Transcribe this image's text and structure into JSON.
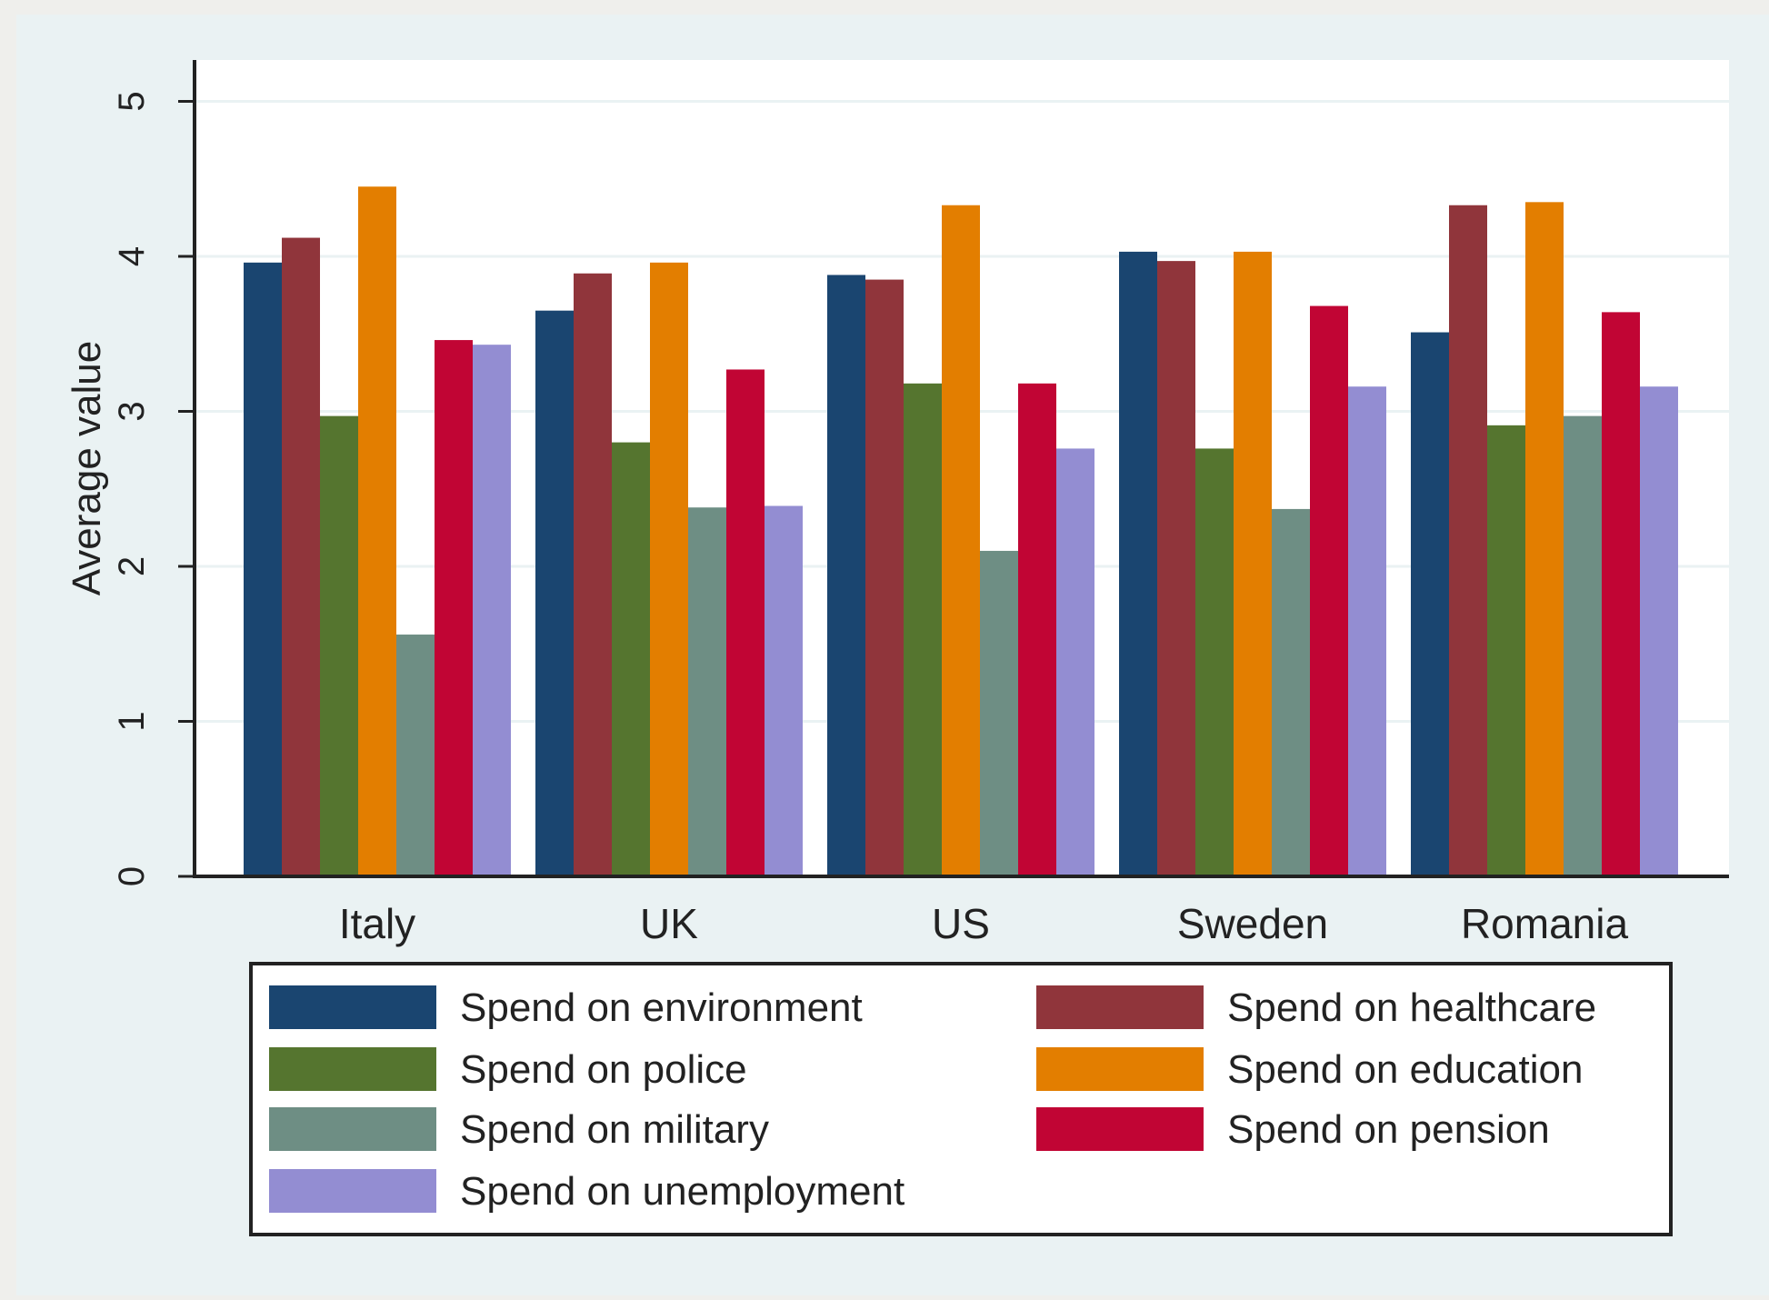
{
  "chart_data": {
    "type": "bar",
    "title": "",
    "xlabel": "",
    "ylabel": "Average value",
    "ylim": [
      0,
      5.2
    ],
    "yticks": [
      0,
      1,
      2,
      3,
      4,
      5
    ],
    "grid": true,
    "legend_position": "bottom",
    "categories": [
      "Italy",
      "UK",
      "US",
      "Sweden",
      "Romania"
    ],
    "series": [
      {
        "name": "Spend on environment",
        "color": "#1a4570",
        "values": [
          3.96,
          3.65,
          3.88,
          4.03,
          3.51
        ]
      },
      {
        "name": "Spend on healthcare",
        "color": "#90353b",
        "values": [
          4.12,
          3.89,
          3.85,
          3.97,
          4.33
        ]
      },
      {
        "name": "Spend on police",
        "color": "#55752f",
        "values": [
          2.97,
          2.8,
          3.18,
          2.76,
          2.91
        ]
      },
      {
        "name": "Spend on education",
        "color": "#e37e00",
        "values": [
          4.45,
          3.96,
          4.33,
          4.03,
          4.35
        ]
      },
      {
        "name": "Spend on military",
        "color": "#6e8e84",
        "values": [
          1.56,
          2.38,
          2.1,
          2.37,
          2.97
        ]
      },
      {
        "name": "Spend on pension",
        "color": "#c10534",
        "values": [
          3.46,
          3.27,
          3.18,
          3.68,
          3.64
        ]
      },
      {
        "name": "Spend on unemployment",
        "color": "#938dd2",
        "values": [
          3.43,
          2.39,
          2.76,
          3.16,
          3.16
        ]
      }
    ]
  },
  "colors": {
    "outer_background": "#eaf2f3",
    "plot_background": "#ffffff",
    "gridline": "#eaf2f3",
    "axis": "#000000",
    "legend_border": "#000000"
  }
}
